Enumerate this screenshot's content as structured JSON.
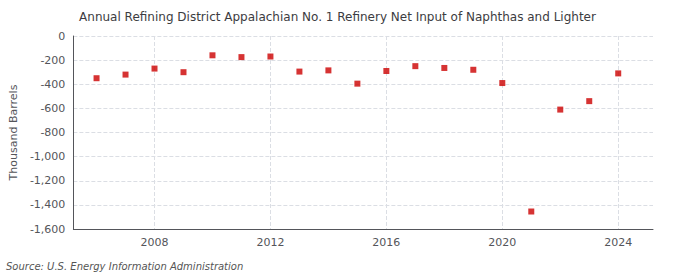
{
  "chart_data": {
    "type": "scatter",
    "title": "Annual Refining District Appalachian No. 1 Refinery Net Input of Naphthas and Lighter",
    "ylabel": "Thousand Barrels",
    "source": "Source: U.S. Energy Information Administration",
    "x": [
      2006,
      2007,
      2008,
      2009,
      2010,
      2011,
      2012,
      2013,
      2014,
      2015,
      2016,
      2017,
      2018,
      2019,
      2020,
      2021,
      2022,
      2023,
      2024
    ],
    "values": [
      -350,
      -320,
      -270,
      -300,
      -160,
      -175,
      -170,
      -295,
      -285,
      -395,
      -290,
      -250,
      -265,
      -280,
      -390,
      -1455,
      -610,
      -540,
      -310
    ],
    "color": "#cc0000",
    "marker": "square",
    "xlim": [
      2005.2,
      2025.2
    ],
    "xticks": [
      2008,
      2012,
      2016,
      2020,
      2024
    ],
    "ylim": [
      -1600,
      0
    ],
    "yticks": [
      0,
      -200,
      -400,
      -600,
      -800,
      {
        "value": -1000,
        "label": "-1,000"
      },
      {
        "value": -1200,
        "label": "-1,200"
      },
      {
        "value": -1400,
        "label": "-1,400"
      },
      {
        "value": -1600,
        "label": "-1,600"
      }
    ],
    "grid": true
  }
}
